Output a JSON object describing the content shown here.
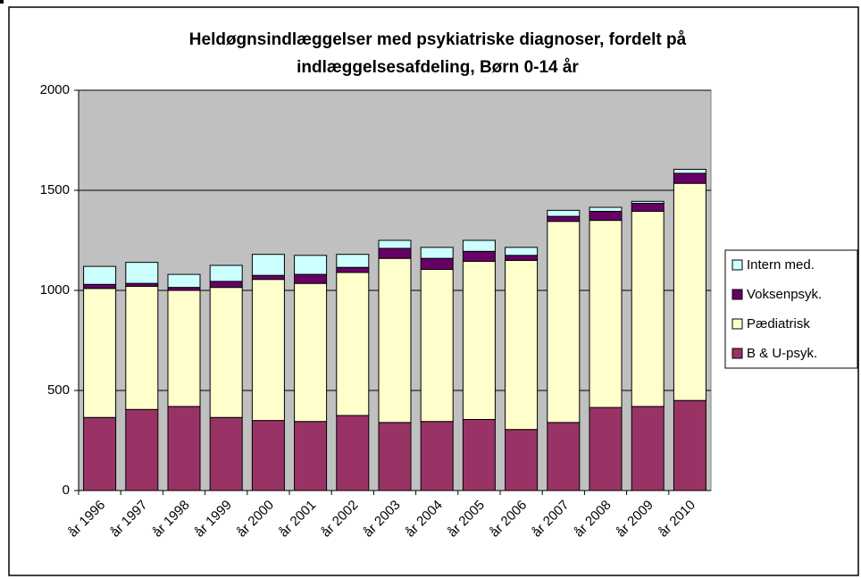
{
  "chart_data": {
    "type": "stacked_bar",
    "title": [
      "Heldøgnsindlæggelser med psykiatriske diagnoser, fordelt på",
      "indlæggelsesafdeling, Børn 0-14 år"
    ],
    "categories": [
      "år 1996",
      "år 1997",
      "år 1998",
      "år 1999",
      "år 2000",
      "år 2001",
      "år 2002",
      "år 2003",
      "år 2004",
      "år 2005",
      "år 2006",
      "år 2007",
      "år 2008",
      "år 2009",
      "år 2010"
    ],
    "series": [
      {
        "name": "B & U-psyk.",
        "color": "#993366",
        "values": [
          365,
          405,
          420,
          365,
          350,
          345,
          375,
          340,
          345,
          355,
          305,
          340,
          415,
          420,
          450
        ]
      },
      {
        "name": "Pædiatrisk",
        "color": "#ffffcc",
        "values": [
          645,
          615,
          580,
          650,
          705,
          690,
          715,
          820,
          760,
          790,
          845,
          1005,
          935,
          975,
          1085
        ]
      },
      {
        "name": "Voksenpsyk.",
        "color": "#660066",
        "values": [
          20,
          15,
          15,
          30,
          20,
          45,
          25,
          50,
          55,
          50,
          25,
          25,
          45,
          40,
          50
        ]
      },
      {
        "name": "Intern med.",
        "color": "#ccffff",
        "values": [
          90,
          105,
          65,
          80,
          105,
          95,
          65,
          40,
          55,
          55,
          40,
          30,
          20,
          10,
          20
        ]
      }
    ],
    "ylim": [
      0,
      2000
    ],
    "yticks": [
      0,
      500,
      1000,
      1500,
      2000
    ],
    "grid": true,
    "legend": "right",
    "plot_background": "#c0c0c0"
  }
}
